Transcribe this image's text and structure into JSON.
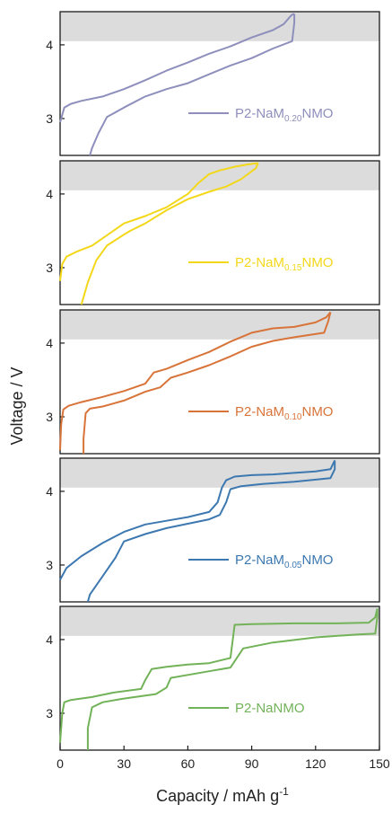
{
  "chart_data": {
    "type": "line",
    "xlabel_main": "Capacity / mAh g",
    "xlabel_sup": "-1",
    "ylabel": "Voltage / V",
    "xlim": [
      0,
      150
    ],
    "x_ticks": [
      0,
      30,
      60,
      90,
      120,
      150
    ],
    "ylim": [
      2.5,
      4.45
    ],
    "y_ticks": [
      3,
      4
    ],
    "shaded_band": [
      4.05,
      4.45
    ],
    "panels": [
      {
        "legend_main": "P2-NaM",
        "legend_sub": "0.20",
        "legend_tail": "NMO",
        "color": "#8e8fbc",
        "charge": [
          [
            0,
            2.95
          ],
          [
            2,
            3.15
          ],
          [
            5,
            3.2
          ],
          [
            10,
            3.24
          ],
          [
            20,
            3.3
          ],
          [
            30,
            3.4
          ],
          [
            40,
            3.52
          ],
          [
            50,
            3.65
          ],
          [
            60,
            3.76
          ],
          [
            70,
            3.88
          ],
          [
            80,
            3.98
          ],
          [
            90,
            4.1
          ],
          [
            100,
            4.2
          ],
          [
            105,
            4.28
          ],
          [
            108,
            4.38
          ],
          [
            109,
            4.41
          ],
          [
            110,
            4.42
          ]
        ],
        "discharge": [
          [
            110,
            4.42
          ],
          [
            110,
            4.3
          ],
          [
            109,
            4.05
          ],
          [
            100,
            3.95
          ],
          [
            90,
            3.82
          ],
          [
            80,
            3.72
          ],
          [
            70,
            3.6
          ],
          [
            60,
            3.48
          ],
          [
            50,
            3.4
          ],
          [
            40,
            3.3
          ],
          [
            30,
            3.15
          ],
          [
            22,
            3.02
          ],
          [
            18,
            2.8
          ],
          [
            15,
            2.6
          ],
          [
            14,
            2.5
          ]
        ]
      },
      {
        "legend_main": "P2-NaM",
        "legend_sub": "0.15",
        "legend_tail": "NMO",
        "color": "#f3d81a",
        "charge": [
          [
            0,
            2.82
          ],
          [
            1,
            3.05
          ],
          [
            3,
            3.15
          ],
          [
            8,
            3.22
          ],
          [
            15,
            3.3
          ],
          [
            20,
            3.4
          ],
          [
            30,
            3.6
          ],
          [
            40,
            3.7
          ],
          [
            50,
            3.82
          ],
          [
            60,
            4.0
          ],
          [
            65,
            4.15
          ],
          [
            70,
            4.27
          ],
          [
            75,
            4.32
          ],
          [
            82,
            4.37
          ],
          [
            88,
            4.4
          ],
          [
            93,
            4.42
          ]
        ],
        "discharge": [
          [
            93,
            4.42
          ],
          [
            92,
            4.35
          ],
          [
            85,
            4.2
          ],
          [
            78,
            4.1
          ],
          [
            70,
            4.03
          ],
          [
            60,
            3.93
          ],
          [
            50,
            3.78
          ],
          [
            40,
            3.6
          ],
          [
            33,
            3.5
          ],
          [
            30,
            3.45
          ],
          [
            22,
            3.3
          ],
          [
            17,
            3.1
          ],
          [
            13,
            2.8
          ],
          [
            11,
            2.6
          ],
          [
            10,
            2.5
          ]
        ]
      },
      {
        "legend_main": "P2-NaM",
        "legend_sub": "0.10",
        "legend_tail": "NMO",
        "color": "#d8743a",
        "charge": [
          [
            0,
            2.55
          ],
          [
            0.5,
            2.9
          ],
          [
            1.5,
            3.1
          ],
          [
            4,
            3.15
          ],
          [
            10,
            3.2
          ],
          [
            20,
            3.27
          ],
          [
            30,
            3.35
          ],
          [
            40,
            3.45
          ],
          [
            44,
            3.6
          ],
          [
            50,
            3.65
          ],
          [
            60,
            3.77
          ],
          [
            70,
            3.88
          ],
          [
            80,
            4.02
          ],
          [
            90,
            4.14
          ],
          [
            100,
            4.2
          ],
          [
            110,
            4.22
          ],
          [
            120,
            4.28
          ],
          [
            125,
            4.35
          ],
          [
            127,
            4.42
          ]
        ],
        "discharge": [
          [
            127,
            4.42
          ],
          [
            126,
            4.3
          ],
          [
            124,
            4.14
          ],
          [
            110,
            4.08
          ],
          [
            100,
            4.03
          ],
          [
            90,
            3.95
          ],
          [
            80,
            3.82
          ],
          [
            70,
            3.7
          ],
          [
            60,
            3.6
          ],
          [
            52,
            3.53
          ],
          [
            47,
            3.4
          ],
          [
            40,
            3.34
          ],
          [
            30,
            3.22
          ],
          [
            20,
            3.14
          ],
          [
            14,
            3.11
          ],
          [
            12,
            3.05
          ],
          [
            11,
            2.7
          ],
          [
            11,
            2.5
          ]
        ]
      },
      {
        "legend_main": "P2-NaM",
        "legend_sub": "0.05",
        "legend_tail": "NMO",
        "color": "#3d78b0",
        "charge": [
          [
            0,
            2.8
          ],
          [
            3,
            2.96
          ],
          [
            10,
            3.12
          ],
          [
            20,
            3.3
          ],
          [
            30,
            3.45
          ],
          [
            40,
            3.55
          ],
          [
            50,
            3.6
          ],
          [
            60,
            3.65
          ],
          [
            70,
            3.72
          ],
          [
            74,
            3.85
          ],
          [
            76,
            4.05
          ],
          [
            78,
            4.15
          ],
          [
            82,
            4.2
          ],
          [
            90,
            4.22
          ],
          [
            100,
            4.23
          ],
          [
            110,
            4.25
          ],
          [
            120,
            4.27
          ],
          [
            127,
            4.3
          ],
          [
            129,
            4.42
          ]
        ],
        "discharge": [
          [
            129,
            4.42
          ],
          [
            129,
            4.3
          ],
          [
            127,
            4.18
          ],
          [
            110,
            4.13
          ],
          [
            95,
            4.1
          ],
          [
            85,
            4.07
          ],
          [
            80,
            4.03
          ],
          [
            78,
            3.85
          ],
          [
            75,
            3.68
          ],
          [
            70,
            3.62
          ],
          [
            60,
            3.56
          ],
          [
            50,
            3.5
          ],
          [
            40,
            3.42
          ],
          [
            30,
            3.32
          ],
          [
            26,
            3.1
          ],
          [
            20,
            2.85
          ],
          [
            14,
            2.6
          ],
          [
            13,
            2.5
          ]
        ]
      },
      {
        "legend_main": "P2-NaNMO",
        "legend_sub": "",
        "legend_tail": "",
        "color": "#72b258",
        "charge": [
          [
            0,
            2.6
          ],
          [
            1,
            3.0
          ],
          [
            2,
            3.15
          ],
          [
            5,
            3.18
          ],
          [
            15,
            3.22
          ],
          [
            25,
            3.28
          ],
          [
            38,
            3.33
          ],
          [
            40,
            3.45
          ],
          [
            43,
            3.6
          ],
          [
            50,
            3.63
          ],
          [
            60,
            3.66
          ],
          [
            70,
            3.68
          ],
          [
            80,
            3.75
          ],
          [
            82,
            4.2
          ],
          [
            90,
            4.21
          ],
          [
            110,
            4.22
          ],
          [
            130,
            4.22
          ],
          [
            145,
            4.23
          ],
          [
            148,
            4.3
          ],
          [
            149,
            4.42
          ]
        ],
        "discharge": [
          [
            149,
            4.42
          ],
          [
            149,
            4.3
          ],
          [
            148,
            4.08
          ],
          [
            140,
            4.07
          ],
          [
            120,
            4.03
          ],
          [
            100,
            3.96
          ],
          [
            86,
            3.88
          ],
          [
            80,
            3.62
          ],
          [
            70,
            3.57
          ],
          [
            60,
            3.52
          ],
          [
            52,
            3.48
          ],
          [
            50,
            3.35
          ],
          [
            45,
            3.26
          ],
          [
            30,
            3.2
          ],
          [
            20,
            3.15
          ],
          [
            15,
            3.08
          ],
          [
            13,
            2.8
          ],
          [
            13,
            2.5
          ]
        ]
      }
    ]
  }
}
